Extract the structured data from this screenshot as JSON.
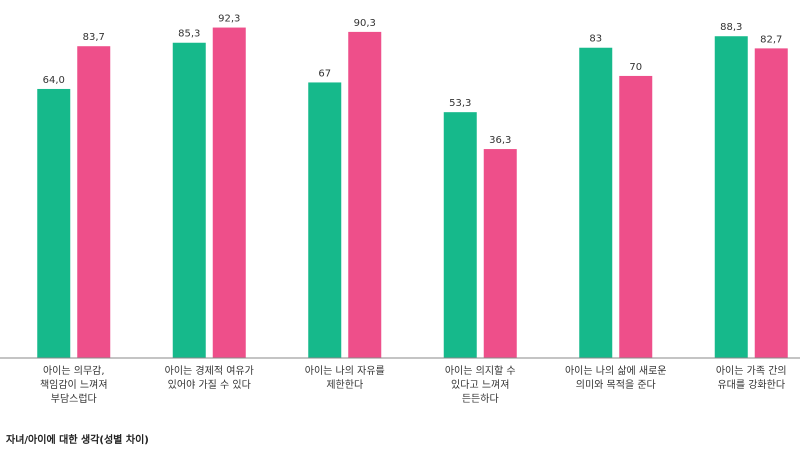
{
  "chart_data": {
    "type": "bar",
    "title": "자녀/아이에 대한 생각(성별 차이)",
    "categories": [
      [
        "아이는 의무감,",
        "책임감이 느껴져",
        "부담스럽다"
      ],
      [
        "아이는 경제적 여유가",
        "있어야 가질 수 있다"
      ],
      [
        "아이는 나의 자유를",
        "제한한다"
      ],
      [
        "아이는 의지할 수",
        "있다고 느껴져",
        "든든하다"
      ],
      [
        "아이는 나의 삶에 새로운",
        "의미와 목적을 준다"
      ],
      [
        "아이는 가족 간의",
        "유대를 강화한다"
      ]
    ],
    "series": [
      {
        "color": "#16b98b",
        "values": [
          64.0,
          85.3,
          67,
          53.3,
          83,
          88.3
        ],
        "value_labels": [
          "64,0",
          "85,3",
          "67",
          "53,3",
          "83",
          "88,3"
        ]
      },
      {
        "color": "#ee4f8a",
        "values": [
          83.7,
          92.3,
          90.3,
          36.3,
          70,
          82.7
        ],
        "value_labels": [
          "83,7",
          "92,3",
          "90,3",
          "36,3",
          "70",
          "82,7"
        ]
      }
    ],
    "ylim": [
      -60,
      105
    ]
  }
}
